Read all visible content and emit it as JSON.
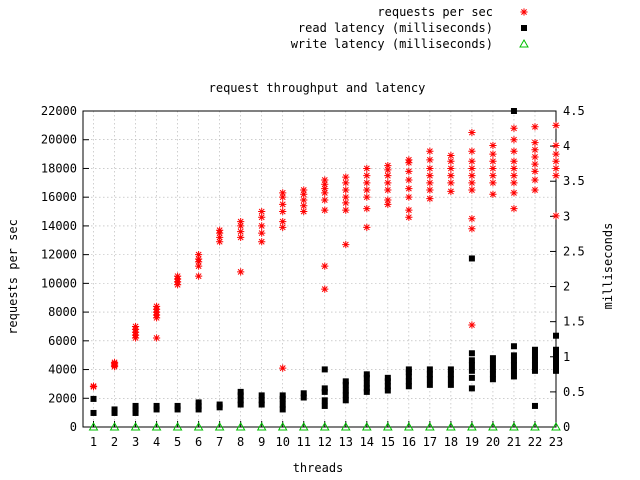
{
  "chart_data": {
    "type": "scatter",
    "title": "request throughput and latency",
    "xlabel": "threads",
    "ylabel": "requests per sec",
    "y2label": "milliseconds",
    "xlim": [
      0.5,
      23
    ],
    "ylim": [
      0,
      22000
    ],
    "y2lim": [
      0,
      4.5
    ],
    "x_ticks": [
      1,
      2,
      3,
      4,
      5,
      6,
      7,
      8,
      9,
      10,
      11,
      12,
      13,
      14,
      15,
      16,
      17,
      18,
      19,
      20,
      21,
      22,
      23
    ],
    "y_ticks": [
      0,
      2000,
      4000,
      6000,
      8000,
      10000,
      12000,
      14000,
      16000,
      18000,
      20000,
      22000
    ],
    "y2_ticks": [
      0,
      0.5,
      1,
      1.5,
      2,
      2.5,
      3,
      3.5,
      4,
      4.5
    ],
    "grid": true,
    "legend_position": "top-right",
    "series": [
      {
        "name": "requests per sec",
        "axis": "y",
        "color": "#ff0000",
        "marker": "asterisk",
        "points": [
          [
            1,
            2800
          ],
          [
            1,
            2850
          ],
          [
            2,
            4200
          ],
          [
            2,
            4300
          ],
          [
            2,
            4400
          ],
          [
            2,
            4500
          ],
          [
            3,
            6200
          ],
          [
            3,
            6400
          ],
          [
            3,
            6600
          ],
          [
            3,
            6800
          ],
          [
            3,
            7000
          ],
          [
            4,
            6200
          ],
          [
            4,
            7600
          ],
          [
            4,
            7800
          ],
          [
            4,
            8000
          ],
          [
            4,
            8200
          ],
          [
            4,
            8400
          ],
          [
            5,
            9900
          ],
          [
            5,
            10100
          ],
          [
            5,
            10300
          ],
          [
            5,
            10500
          ],
          [
            6,
            10500
          ],
          [
            6,
            11200
          ],
          [
            6,
            11500
          ],
          [
            6,
            11700
          ],
          [
            6,
            12000
          ],
          [
            7,
            12900
          ],
          [
            7,
            13200
          ],
          [
            7,
            13500
          ],
          [
            7,
            13700
          ],
          [
            8,
            10800
          ],
          [
            8,
            13200
          ],
          [
            8,
            13600
          ],
          [
            8,
            14000
          ],
          [
            8,
            14300
          ],
          [
            9,
            12900
          ],
          [
            9,
            13500
          ],
          [
            9,
            14000
          ],
          [
            9,
            14600
          ],
          [
            9,
            15000
          ],
          [
            10,
            4100
          ],
          [
            10,
            13900
          ],
          [
            10,
            14300
          ],
          [
            10,
            15000
          ],
          [
            10,
            15500
          ],
          [
            10,
            16000
          ],
          [
            10,
            16300
          ],
          [
            11,
            15000
          ],
          [
            11,
            15400
          ],
          [
            11,
            15800
          ],
          [
            11,
            16200
          ],
          [
            11,
            16500
          ],
          [
            12,
            9600
          ],
          [
            12,
            11200
          ],
          [
            12,
            15100
          ],
          [
            12,
            15800
          ],
          [
            12,
            16300
          ],
          [
            12,
            16600
          ],
          [
            12,
            16900
          ],
          [
            12,
            17200
          ],
          [
            13,
            12700
          ],
          [
            13,
            15100
          ],
          [
            13,
            15600
          ],
          [
            13,
            16000
          ],
          [
            13,
            16500
          ],
          [
            13,
            17000
          ],
          [
            13,
            17400
          ],
          [
            14,
            13900
          ],
          [
            14,
            15200
          ],
          [
            14,
            16000
          ],
          [
            14,
            16500
          ],
          [
            14,
            17000
          ],
          [
            14,
            17500
          ],
          [
            14,
            18000
          ],
          [
            15,
            15500
          ],
          [
            15,
            15800
          ],
          [
            15,
            16500
          ],
          [
            15,
            17000
          ],
          [
            15,
            17500
          ],
          [
            15,
            17900
          ],
          [
            15,
            18200
          ],
          [
            16,
            14600
          ],
          [
            16,
            15100
          ],
          [
            16,
            16000
          ],
          [
            16,
            16600
          ],
          [
            16,
            17200
          ],
          [
            16,
            17800
          ],
          [
            16,
            18400
          ],
          [
            16,
            18600
          ],
          [
            17,
            15900
          ],
          [
            17,
            16500
          ],
          [
            17,
            17000
          ],
          [
            17,
            17500
          ],
          [
            17,
            18000
          ],
          [
            17,
            18600
          ],
          [
            17,
            19200
          ],
          [
            18,
            16400
          ],
          [
            18,
            17000
          ],
          [
            18,
            17500
          ],
          [
            18,
            18000
          ],
          [
            18,
            18500
          ],
          [
            18,
            18900
          ],
          [
            19,
            7100
          ],
          [
            19,
            13800
          ],
          [
            19,
            14500
          ],
          [
            19,
            16500
          ],
          [
            19,
            17000
          ],
          [
            19,
            17500
          ],
          [
            19,
            18000
          ],
          [
            19,
            18500
          ],
          [
            19,
            19200
          ],
          [
            19,
            20500
          ],
          [
            20,
            16200
          ],
          [
            20,
            17000
          ],
          [
            20,
            17500
          ],
          [
            20,
            18000
          ],
          [
            20,
            18500
          ],
          [
            20,
            19000
          ],
          [
            20,
            19600
          ],
          [
            21,
            15200
          ],
          [
            21,
            16300
          ],
          [
            21,
            17000
          ],
          [
            21,
            17500
          ],
          [
            21,
            18000
          ],
          [
            21,
            18500
          ],
          [
            21,
            19200
          ],
          [
            21,
            20000
          ],
          [
            21,
            20800
          ],
          [
            22,
            16500
          ],
          [
            22,
            17200
          ],
          [
            22,
            17800
          ],
          [
            22,
            18300
          ],
          [
            22,
            18800
          ],
          [
            22,
            19300
          ],
          [
            22,
            19800
          ],
          [
            22,
            20900
          ],
          [
            23,
            14700
          ],
          [
            23,
            17500
          ],
          [
            23,
            18000
          ],
          [
            23,
            18500
          ],
          [
            23,
            19000
          ],
          [
            23,
            19600
          ],
          [
            23,
            21000
          ]
        ]
      },
      {
        "name": "read latency (milliseconds)",
        "axis": "y2",
        "color": "#000000",
        "marker": "filled-square",
        "points": [
          [
            1,
            0.2
          ],
          [
            1,
            0.4
          ],
          [
            2,
            0.2
          ],
          [
            2,
            0.25
          ],
          [
            3,
            0.2
          ],
          [
            3,
            0.25
          ],
          [
            3,
            0.3
          ],
          [
            4,
            0.25
          ],
          [
            4,
            0.3
          ],
          [
            5,
            0.25
          ],
          [
            5,
            0.3
          ],
          [
            6,
            0.25
          ],
          [
            6,
            0.3
          ],
          [
            6,
            0.35
          ],
          [
            7,
            0.28
          ],
          [
            7,
            0.32
          ],
          [
            8,
            0.32
          ],
          [
            8,
            0.38
          ],
          [
            8,
            0.45
          ],
          [
            8,
            0.5
          ],
          [
            9,
            0.32
          ],
          [
            9,
            0.38
          ],
          [
            9,
            0.45
          ],
          [
            10,
            0.25
          ],
          [
            10,
            0.32
          ],
          [
            10,
            0.4
          ],
          [
            10,
            0.45
          ],
          [
            11,
            0.42
          ],
          [
            11,
            0.48
          ],
          [
            12,
            0.3
          ],
          [
            12,
            0.38
          ],
          [
            12,
            0.5
          ],
          [
            12,
            0.55
          ],
          [
            12,
            0.82
          ],
          [
            13,
            0.38
          ],
          [
            13,
            0.45
          ],
          [
            13,
            0.52
          ],
          [
            13,
            0.6
          ],
          [
            13,
            0.65
          ],
          [
            14,
            0.5
          ],
          [
            14,
            0.55
          ],
          [
            14,
            0.62
          ],
          [
            14,
            0.7
          ],
          [
            14,
            0.75
          ],
          [
            15,
            0.52
          ],
          [
            15,
            0.58
          ],
          [
            15,
            0.65
          ],
          [
            15,
            0.7
          ],
          [
            16,
            0.58
          ],
          [
            16,
            0.65
          ],
          [
            16,
            0.72
          ],
          [
            16,
            0.78
          ],
          [
            16,
            0.82
          ],
          [
            17,
            0.6
          ],
          [
            17,
            0.68
          ],
          [
            17,
            0.75
          ],
          [
            17,
            0.82
          ],
          [
            18,
            0.6
          ],
          [
            18,
            0.68
          ],
          [
            18,
            0.75
          ],
          [
            18,
            0.82
          ],
          [
            19,
            0.55
          ],
          [
            19,
            0.7
          ],
          [
            19,
            0.8
          ],
          [
            19,
            0.88
          ],
          [
            19,
            0.95
          ],
          [
            19,
            1.05
          ],
          [
            19,
            2.4
          ],
          [
            20,
            0.68
          ],
          [
            20,
            0.75
          ],
          [
            20,
            0.82
          ],
          [
            20,
            0.9
          ],
          [
            20,
            0.98
          ],
          [
            21,
            0.72
          ],
          [
            21,
            0.8
          ],
          [
            21,
            0.88
          ],
          [
            21,
            0.95
          ],
          [
            21,
            1.02
          ],
          [
            21,
            1.15
          ],
          [
            21,
            4.5
          ],
          [
            22,
            0.3
          ],
          [
            22,
            0.8
          ],
          [
            22,
            0.88
          ],
          [
            22,
            0.95
          ],
          [
            22,
            1.02
          ],
          [
            22,
            1.1
          ],
          [
            23,
            0.8
          ],
          [
            23,
            0.88
          ],
          [
            23,
            0.95
          ],
          [
            23,
            1.02
          ],
          [
            23,
            1.1
          ],
          [
            23,
            1.3
          ]
        ]
      },
      {
        "name": "write latency (milliseconds)",
        "axis": "y2",
        "color": "#00c000",
        "marker": "open-triangle",
        "points": [
          [
            1,
            0
          ],
          [
            2,
            0
          ],
          [
            3,
            0
          ],
          [
            4,
            0
          ],
          [
            5,
            0
          ],
          [
            6,
            0
          ],
          [
            7,
            0
          ],
          [
            8,
            0
          ],
          [
            9,
            0
          ],
          [
            10,
            0
          ],
          [
            11,
            0
          ],
          [
            12,
            0
          ],
          [
            13,
            0
          ],
          [
            14,
            0
          ],
          [
            15,
            0
          ],
          [
            16,
            0
          ],
          [
            17,
            0
          ],
          [
            18,
            0
          ],
          [
            19,
            0
          ],
          [
            20,
            0
          ],
          [
            21,
            0
          ],
          [
            22,
            0
          ],
          [
            23,
            0
          ]
        ]
      }
    ]
  }
}
